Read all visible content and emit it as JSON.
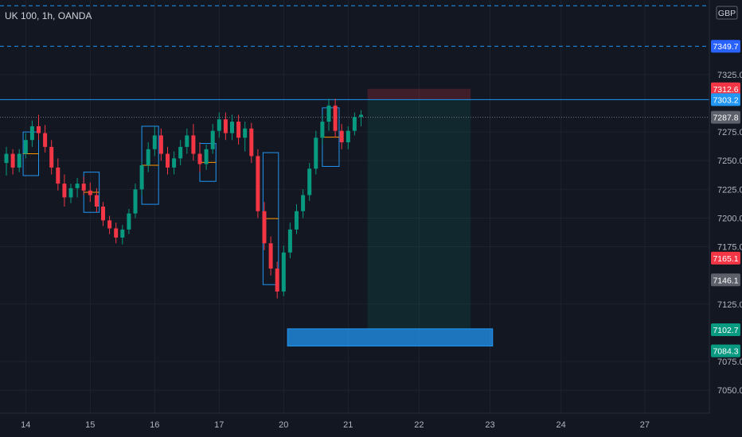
{
  "header": {
    "symbol_title": "UK 100, 1h, OANDA"
  },
  "currency_badge": "GBP",
  "chart_data": {
    "type": "candlestick",
    "title": "UK 100, 1h, OANDA",
    "ylim": [
      7030,
      7390
    ],
    "x_ticks": [
      {
        "label": "14",
        "i": 3
      },
      {
        "label": "15",
        "i": 13
      },
      {
        "label": "16",
        "i": 23
      },
      {
        "label": "17",
        "i": 33
      },
      {
        "label": "20",
        "i": 43
      },
      {
        "label": "21",
        "i": 53
      },
      {
        "label": "22",
        "i": 64
      },
      {
        "label": "23",
        "i": 75
      },
      {
        "label": "24",
        "i": 86
      },
      {
        "label": "27",
        "i": 99
      }
    ],
    "y_ticks": [
      7325.0,
      7275.0,
      7250.0,
      7225.0,
      7200.0,
      7175.0,
      7125.0,
      7075.0,
      7050.0
    ],
    "price_badges": [
      {
        "label": "7349.7",
        "value": 7349.7,
        "color": "#2962ff"
      },
      {
        "label": "7312.6",
        "value": 7312.6,
        "color": "#f23645"
      },
      {
        "label": "7303.2",
        "value": 7303.2,
        "color": "#2196f3"
      },
      {
        "label": "7287.8",
        "value": 7287.8,
        "color": "#5d606b"
      },
      {
        "label": "7165.1",
        "value": 7165.1,
        "color": "#f23645"
      },
      {
        "label": "7146.1",
        "value": 7146.1,
        "color": "#5d606b"
      },
      {
        "label": "7102.7",
        "value": 7102.7,
        "color": "#089981"
      },
      {
        "label": "7084.3",
        "value": 7084.3,
        "color": "#089981"
      }
    ],
    "horizontal_lines": [
      {
        "value": 7385.0,
        "style": "dashed",
        "color": "#2196f3"
      },
      {
        "value": 7349.7,
        "style": "dashed",
        "color": "#2196f3"
      },
      {
        "value": 7303.2,
        "style": "solid",
        "color": "#2196f3"
      },
      {
        "value": 7287.8,
        "style": "dotted",
        "color": "#787b86"
      }
    ],
    "candles": [
      [
        7248,
        7262,
        7237,
        7256
      ],
      [
        7256,
        7260,
        7238,
        7244
      ],
      [
        7244,
        7260,
        7240,
        7256
      ],
      [
        7256,
        7274,
        7252,
        7268
      ],
      [
        7268,
        7285,
        7262,
        7280
      ],
      [
        7280,
        7290,
        7268,
        7274
      ],
      [
        7274,
        7281,
        7257,
        7262
      ],
      [
        7262,
        7268,
        7238,
        7244
      ],
      [
        7244,
        7252,
        7224,
        7230
      ],
      [
        7230,
        7238,
        7210,
        7218
      ],
      [
        7218,
        7230,
        7213,
        7226
      ],
      [
        7226,
        7235,
        7218,
        7230
      ],
      [
        7230,
        7236,
        7220,
        7224
      ],
      [
        7224,
        7231,
        7214,
        7220
      ],
      [
        7220,
        7226,
        7205,
        7210
      ],
      [
        7210,
        7214,
        7193,
        7198
      ],
      [
        7198,
        7202,
        7186,
        7191
      ],
      [
        7191,
        7196,
        7178,
        7183
      ],
      [
        7183,
        7194,
        7177,
        7190
      ],
      [
        7190,
        7208,
        7186,
        7204
      ],
      [
        7204,
        7230,
        7200,
        7225
      ],
      [
        7225,
        7250,
        7220,
        7246
      ],
      [
        7246,
        7266,
        7240,
        7260
      ],
      [
        7260,
        7280,
        7254,
        7272
      ],
      [
        7272,
        7278,
        7250,
        7256
      ],
      [
        7256,
        7262,
        7238,
        7244
      ],
      [
        7244,
        7258,
        7238,
        7252
      ],
      [
        7252,
        7268,
        7246,
        7262
      ],
      [
        7262,
        7278,
        7256,
        7272
      ],
      [
        7272,
        7282,
        7250,
        7256
      ],
      [
        7256,
        7266,
        7240,
        7247
      ],
      [
        7247,
        7264,
        7242,
        7260
      ],
      [
        7260,
        7282,
        7256,
        7276
      ],
      [
        7276,
        7292,
        7270,
        7286
      ],
      [
        7286,
        7292,
        7268,
        7274
      ],
      [
        7274,
        7290,
        7268,
        7284
      ],
      [
        7284,
        7290,
        7264,
        7270
      ],
      [
        7270,
        7284,
        7258,
        7278
      ],
      [
        7278,
        7283,
        7248,
        7254
      ],
      [
        7254,
        7260,
        7200,
        7206
      ],
      [
        7206,
        7214,
        7172,
        7178
      ],
      [
        7178,
        7184,
        7150,
        7156
      ],
      [
        7156,
        7162,
        7130,
        7136
      ],
      [
        7136,
        7176,
        7132,
        7170
      ],
      [
        7170,
        7196,
        7165,
        7190
      ],
      [
        7190,
        7212,
        7186,
        7206
      ],
      [
        7206,
        7225,
        7200,
        7220
      ],
      [
        7220,
        7248,
        7215,
        7243
      ],
      [
        7243,
        7276,
        7238,
        7270
      ],
      [
        7270,
        7290,
        7264,
        7284
      ],
      [
        7284,
        7304,
        7276,
        7298
      ],
      [
        7298,
        7304,
        7270,
        7276
      ],
      [
        7276,
        7282,
        7260,
        7266
      ],
      [
        7266,
        7280,
        7260,
        7276
      ],
      [
        7276,
        7292,
        7272,
        7288
      ],
      [
        7288,
        7294,
        7280,
        7290
      ]
    ],
    "zones": [
      {
        "type": "rect",
        "i0": 56,
        "i1": 72,
        "top": 7312.6,
        "bottom": 7303.2,
        "color": "#f23645",
        "opacity": 0.2
      },
      {
        "type": "rect",
        "i0": 56,
        "i1": 72,
        "top": 7303.2,
        "bottom": 7102.7,
        "color": "#089981",
        "opacity": 0.13
      },
      {
        "type": "rect",
        "i0": 43.6,
        "i1": 75.4,
        "top": 7103.5,
        "bottom": 7088.5,
        "color": "#2196f3",
        "opacity": 0.75
      }
    ],
    "boxes": [
      {
        "i0": 2.6,
        "i1": 5.0,
        "top": 7275,
        "bottom": 7237
      },
      {
        "i0": 12.0,
        "i1": 14.4,
        "top": 7240,
        "bottom": 7205
      },
      {
        "i0": 21.0,
        "i1": 23.6,
        "top": 7280,
        "bottom": 7212
      },
      {
        "i0": 30.0,
        "i1": 32.5,
        "top": 7265,
        "bottom": 7232
      },
      {
        "i0": 39.8,
        "i1": 42.2,
        "top": 7257,
        "bottom": 7142
      },
      {
        "i0": 49.0,
        "i1": 51.6,
        "top": 7296,
        "bottom": 7245
      }
    ]
  }
}
